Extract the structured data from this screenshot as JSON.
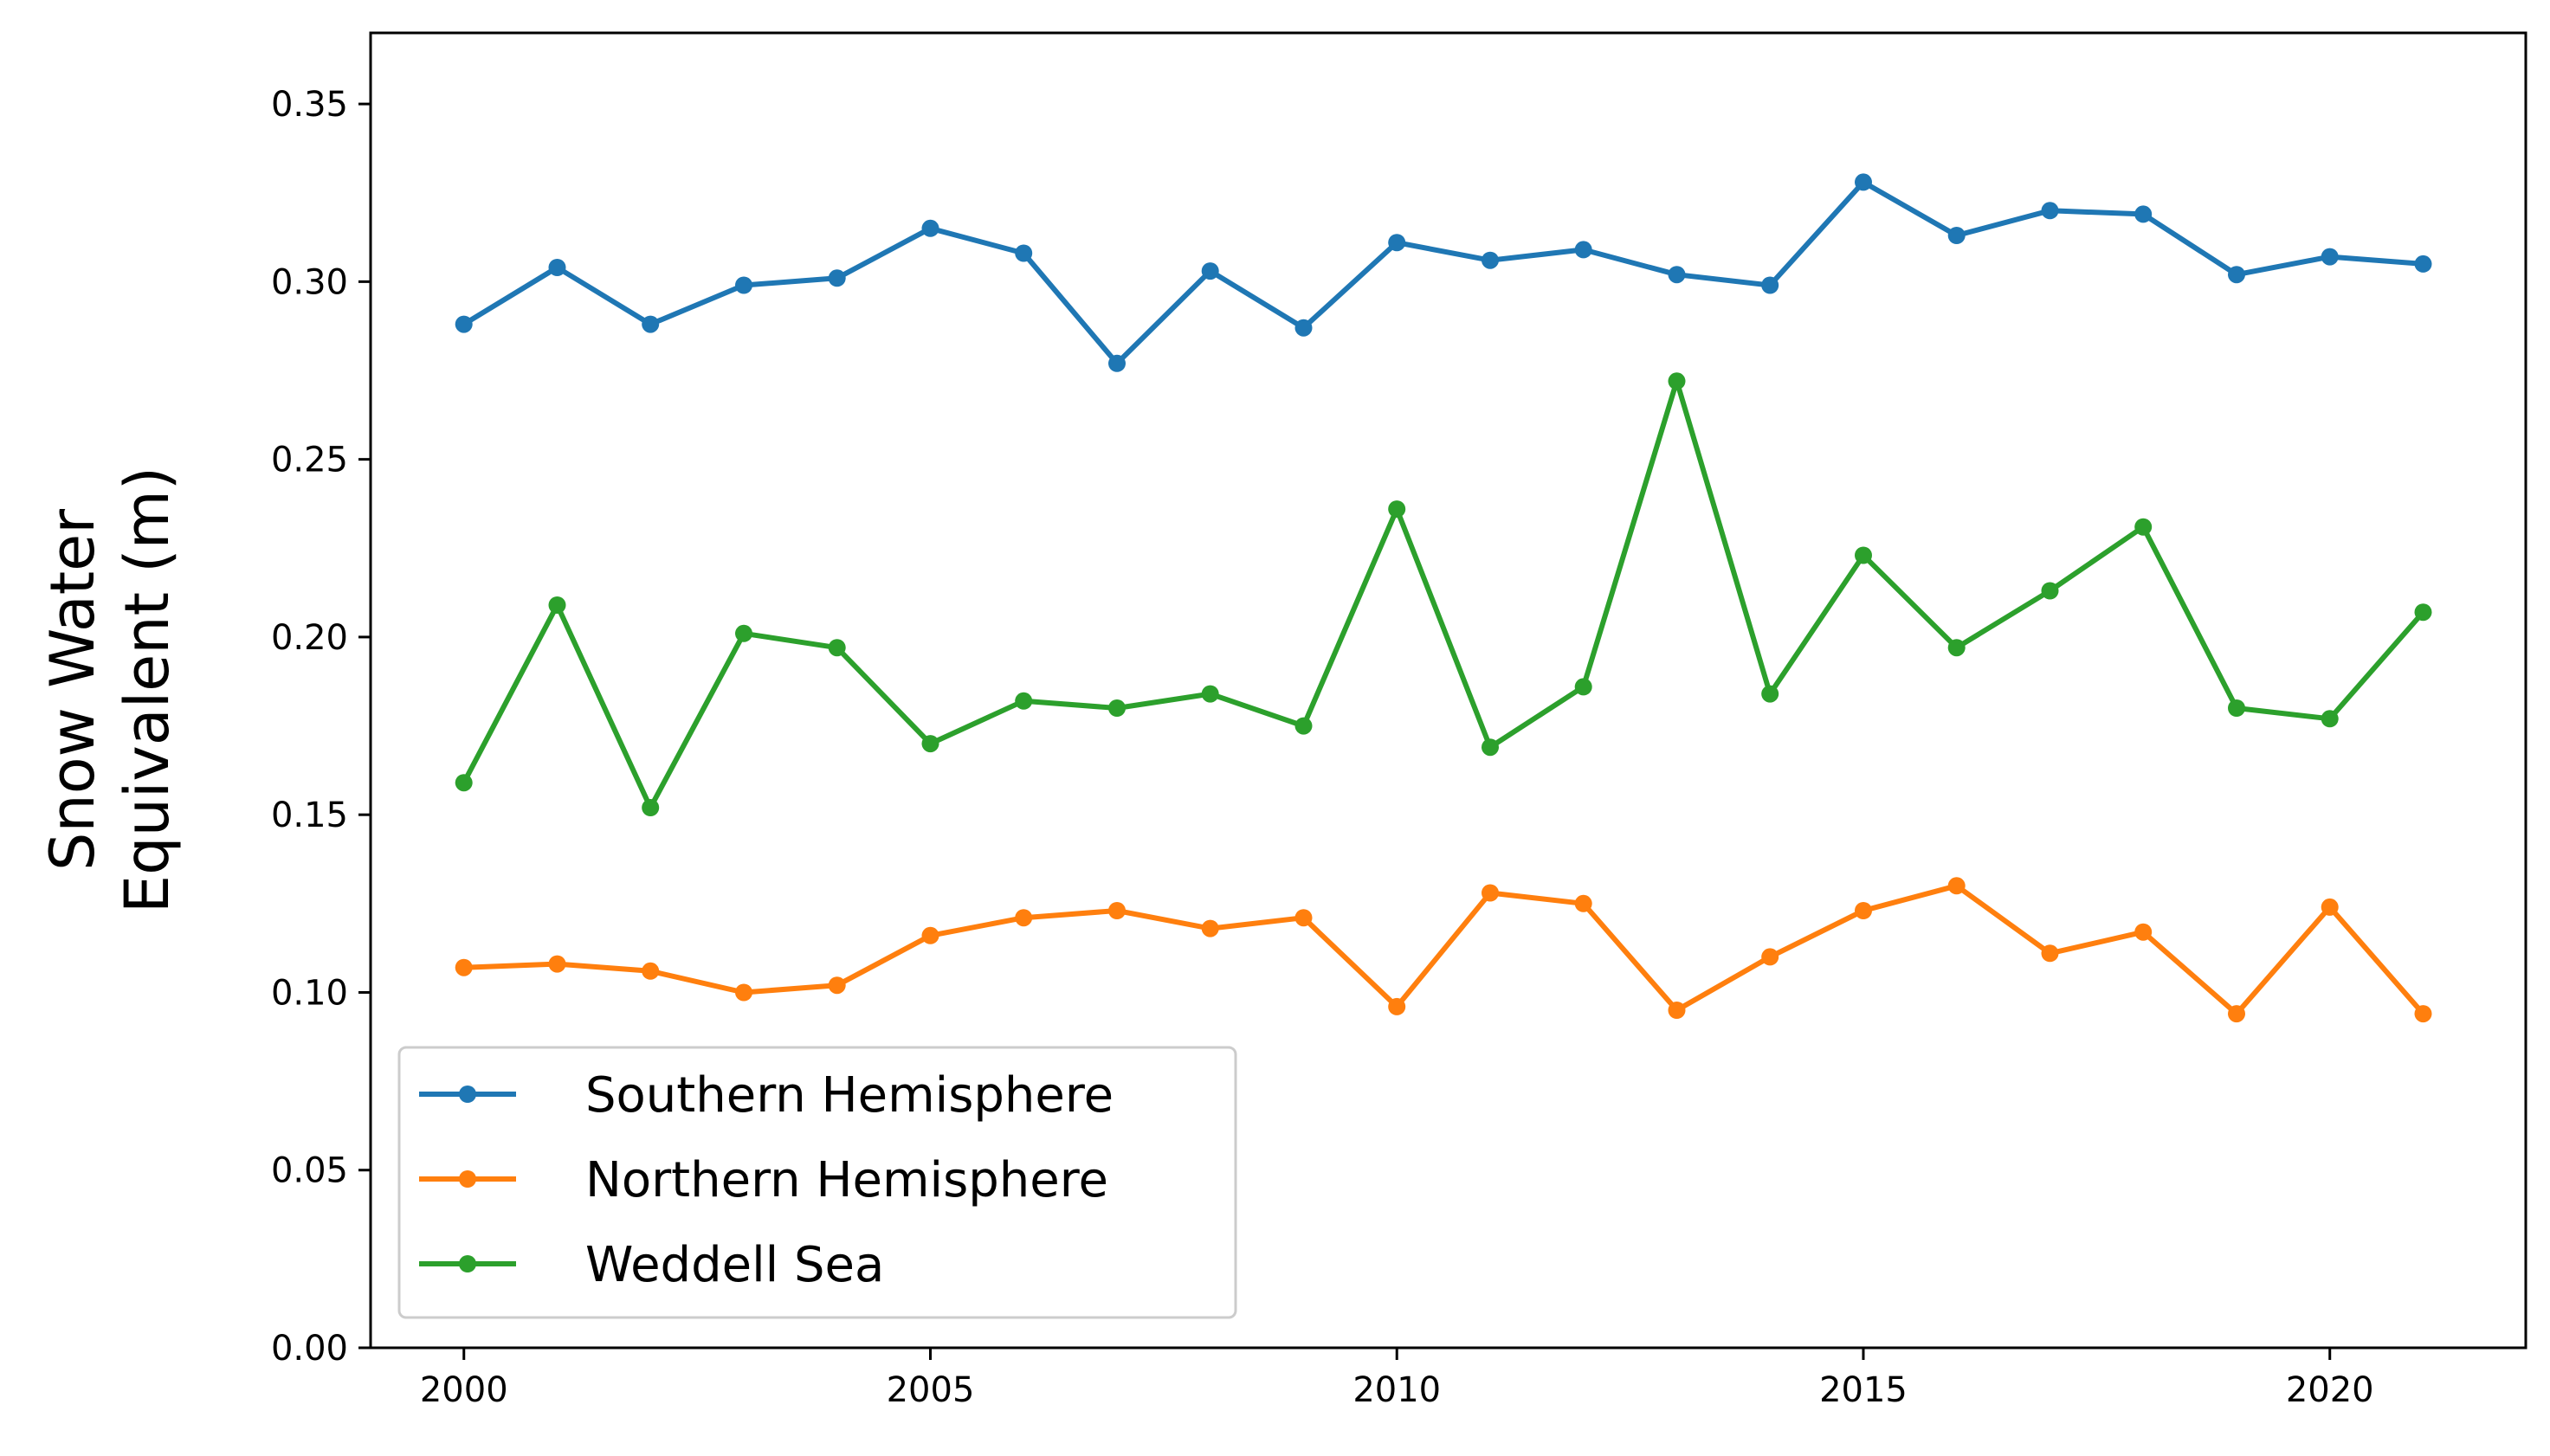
{
  "chart_data": {
    "type": "line",
    "title": "",
    "xlabel": "",
    "ylabel_lines": [
      "Snow Water",
      "Equivalent (m)"
    ],
    "xlim": [
      1999,
      2022.1
    ],
    "ylim": [
      0.0,
      0.37
    ],
    "xticks": [
      "2000",
      "2005",
      "2010",
      "2015",
      "2020"
    ],
    "yticks": [
      "0.00",
      "0.05",
      "0.10",
      "0.15",
      "0.20",
      "0.25",
      "0.30",
      "0.35"
    ],
    "grid": false,
    "legend_position": "lower-left",
    "x": [
      2000,
      2001,
      2002,
      2003,
      2004,
      2005,
      2006,
      2007,
      2008,
      2009,
      2010,
      2011,
      2012,
      2013,
      2014,
      2015,
      2016,
      2017,
      2018,
      2019,
      2020,
      2021
    ],
    "series": [
      {
        "name": "Southern Hemisphere",
        "color": "#1f77b4",
        "values": [
          0.288,
          0.304,
          0.288,
          0.299,
          0.301,
          0.315,
          0.308,
          0.277,
          0.303,
          0.287,
          0.311,
          0.306,
          0.309,
          0.302,
          0.299,
          0.328,
          0.313,
          0.32,
          0.319,
          0.302,
          0.307,
          0.305
        ]
      },
      {
        "name": "Northern Hemisphere",
        "color": "#ff7f0e",
        "values": [
          0.107,
          0.108,
          0.106,
          0.1,
          0.102,
          0.116,
          0.121,
          0.123,
          0.118,
          0.121,
          0.096,
          0.128,
          0.125,
          0.095,
          0.11,
          0.123,
          0.13,
          0.111,
          0.117,
          0.094,
          0.124,
          0.094
        ]
      },
      {
        "name": "Weddell Sea",
        "color": "#2ca02c",
        "values": [
          0.159,
          0.209,
          0.152,
          0.201,
          0.197,
          0.17,
          0.182,
          0.18,
          0.184,
          0.175,
          0.236,
          0.169,
          0.186,
          0.272,
          0.184,
          0.223,
          0.197,
          0.213,
          0.231,
          0.18,
          0.177,
          0.207
        ]
      }
    ]
  }
}
